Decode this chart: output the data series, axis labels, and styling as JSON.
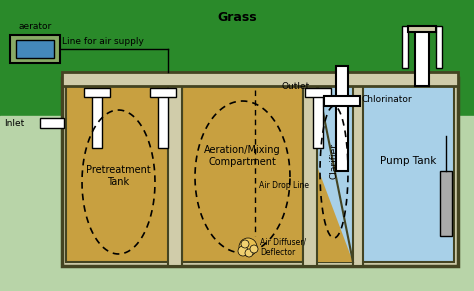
{
  "grass_color": "#2a8a2a",
  "soil_color": "#c0d8b0",
  "tank_brown": "#c8a040",
  "tank_blue": "#a8d0e8",
  "wall_color": "#d0ccaa",
  "wall_edge": "#444422",
  "white": "#ffffff",
  "gray_pump": "#aaaaaa",
  "aerator_blue": "#4488bb",
  "aerator_frame": "#88aa66",
  "diffuser_yellow": "#e8c050",
  "labels": {
    "grass": "Grass",
    "aerator": "aerator",
    "air_supply": "Line for air supply",
    "inlet": "Inlet",
    "pretreatment": "Pretreatment\nTank",
    "aeration": "Aeration/Mixing\nCompartment",
    "air_drop": "Air Drop Line",
    "air_diffuser": "Air Diffuser/\nDeflector",
    "outlet": "Outlet",
    "chlorinator": "Chlorinator",
    "clarifier": "Clarifier",
    "pump_tank": "Pump Tank"
  },
  "figsize": [
    4.74,
    2.91
  ],
  "dpi": 100
}
